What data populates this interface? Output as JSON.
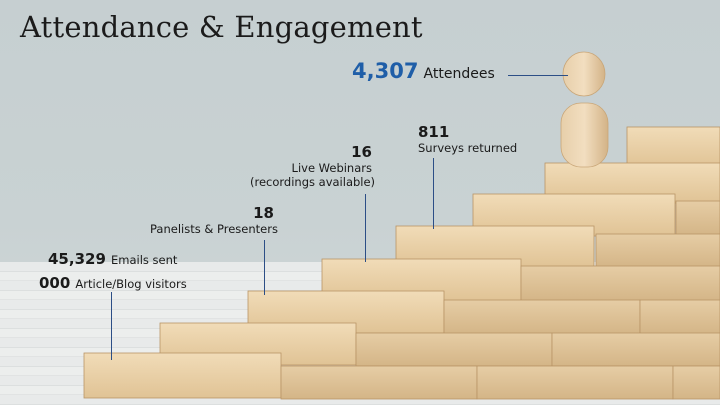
{
  "title": "Attendance & Engagement",
  "stats": {
    "attendees": {
      "value": "4,307",
      "label": "Attendees"
    },
    "surveys": {
      "value": "811",
      "label": "Surveys returned"
    },
    "webinars": {
      "value": "16",
      "label_line1": "Live Webinars",
      "label_line2": "(recordings available)"
    },
    "panelists": {
      "value": "18",
      "label": "Panelists & Presenters"
    },
    "emails": {
      "value": "45,329",
      "label": "Emails sent"
    },
    "visitors": {
      "value": "000",
      "label": "Article/Blog visitors"
    }
  },
  "colors": {
    "accent": "#1f5ea8",
    "connector": "#2c4e86",
    "wood": "#e9d1aa"
  }
}
